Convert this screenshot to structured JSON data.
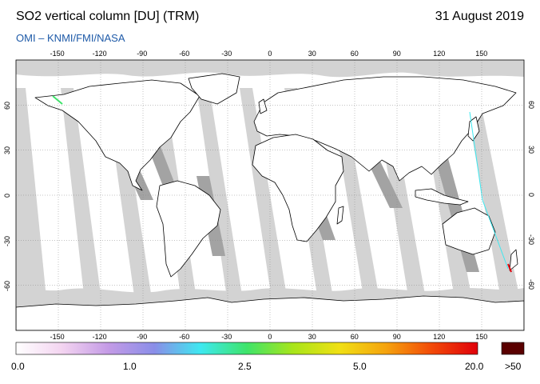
{
  "header": {
    "title": "SO2 vertical column [DU] (TRM)",
    "date": "31 August 2019",
    "credit": "OMI  –  KNMI/FMI/NASA"
  },
  "map": {
    "x_ticks": [
      "-150",
      "-120",
      "-90",
      "-60",
      "-30",
      "0",
      "30",
      "60",
      "90",
      "120",
      "150"
    ],
    "y_ticks": [
      "60",
      "30",
      "0",
      "-30",
      "-60"
    ],
    "colors": {
      "ocean": "#ffffff",
      "no_data_dark": "#a3a3a3",
      "no_data_light": "#d3d3d3",
      "coast": "#000000"
    }
  },
  "colorbar": {
    "labels": [
      "0.0",
      "1.0",
      "2.5",
      "5.0",
      "20.0",
      ">50"
    ],
    "stops": [
      "#ffffff",
      "#f3d4f0",
      "#c49be6",
      "#8a8ee8",
      "#3ee8f0",
      "#3ee46a",
      "#a8e51a",
      "#f0e014",
      "#f5a40e",
      "#f24a08",
      "#e0000a"
    ],
    "overflow_color": "#5a0000"
  }
}
